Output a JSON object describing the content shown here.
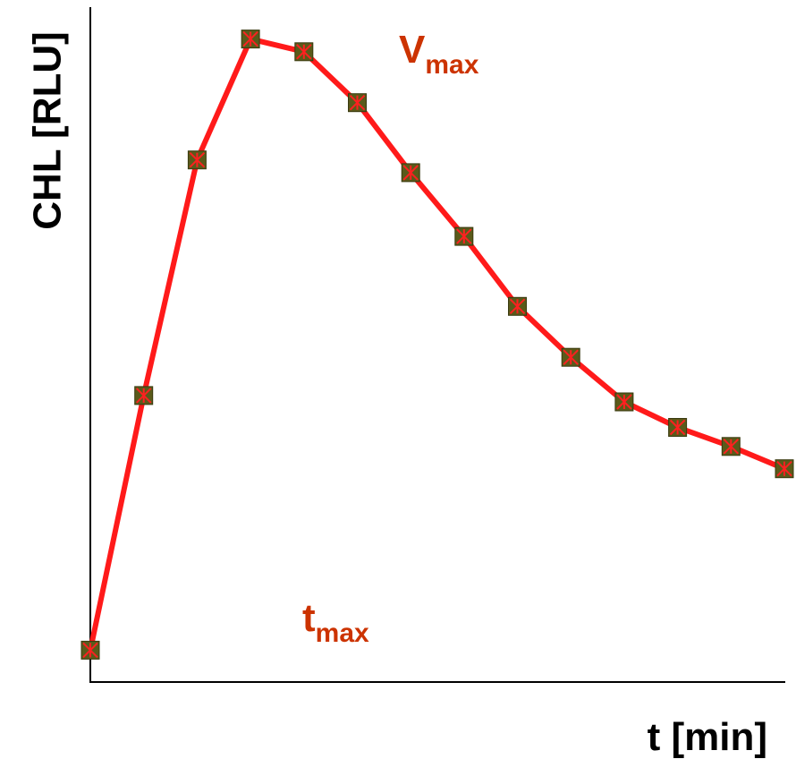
{
  "chart_data": {
    "type": "line",
    "xlabel": "t [min]",
    "ylabel": "CHL [RLU]",
    "x_ticks_shown": false,
    "y_ticks_shown": false,
    "grid": false,
    "legend": "none",
    "series": [
      {
        "x": [
          0,
          1,
          2,
          3,
          4,
          5,
          6,
          7,
          8,
          9,
          10,
          11,
          12,
          13
        ],
        "values": [
          0,
          40,
          77,
          96,
          94,
          86,
          75,
          65,
          54,
          46,
          39,
          35,
          32,
          28.5
        ]
      }
    ],
    "xlim": [
      0,
      13
    ],
    "ylim": [
      -5,
      101
    ],
    "annotations": [
      {
        "name": "vmax",
        "main": "V",
        "sub": "max"
      },
      {
        "name": "tmax",
        "main": "t",
        "sub": "max"
      }
    ],
    "colors": {
      "line": "#ff1a1a",
      "marker_fill": "#5a5a1a",
      "marker_cross": "#ff2020",
      "annotation": "#cc3300",
      "axis": "#000000"
    }
  }
}
